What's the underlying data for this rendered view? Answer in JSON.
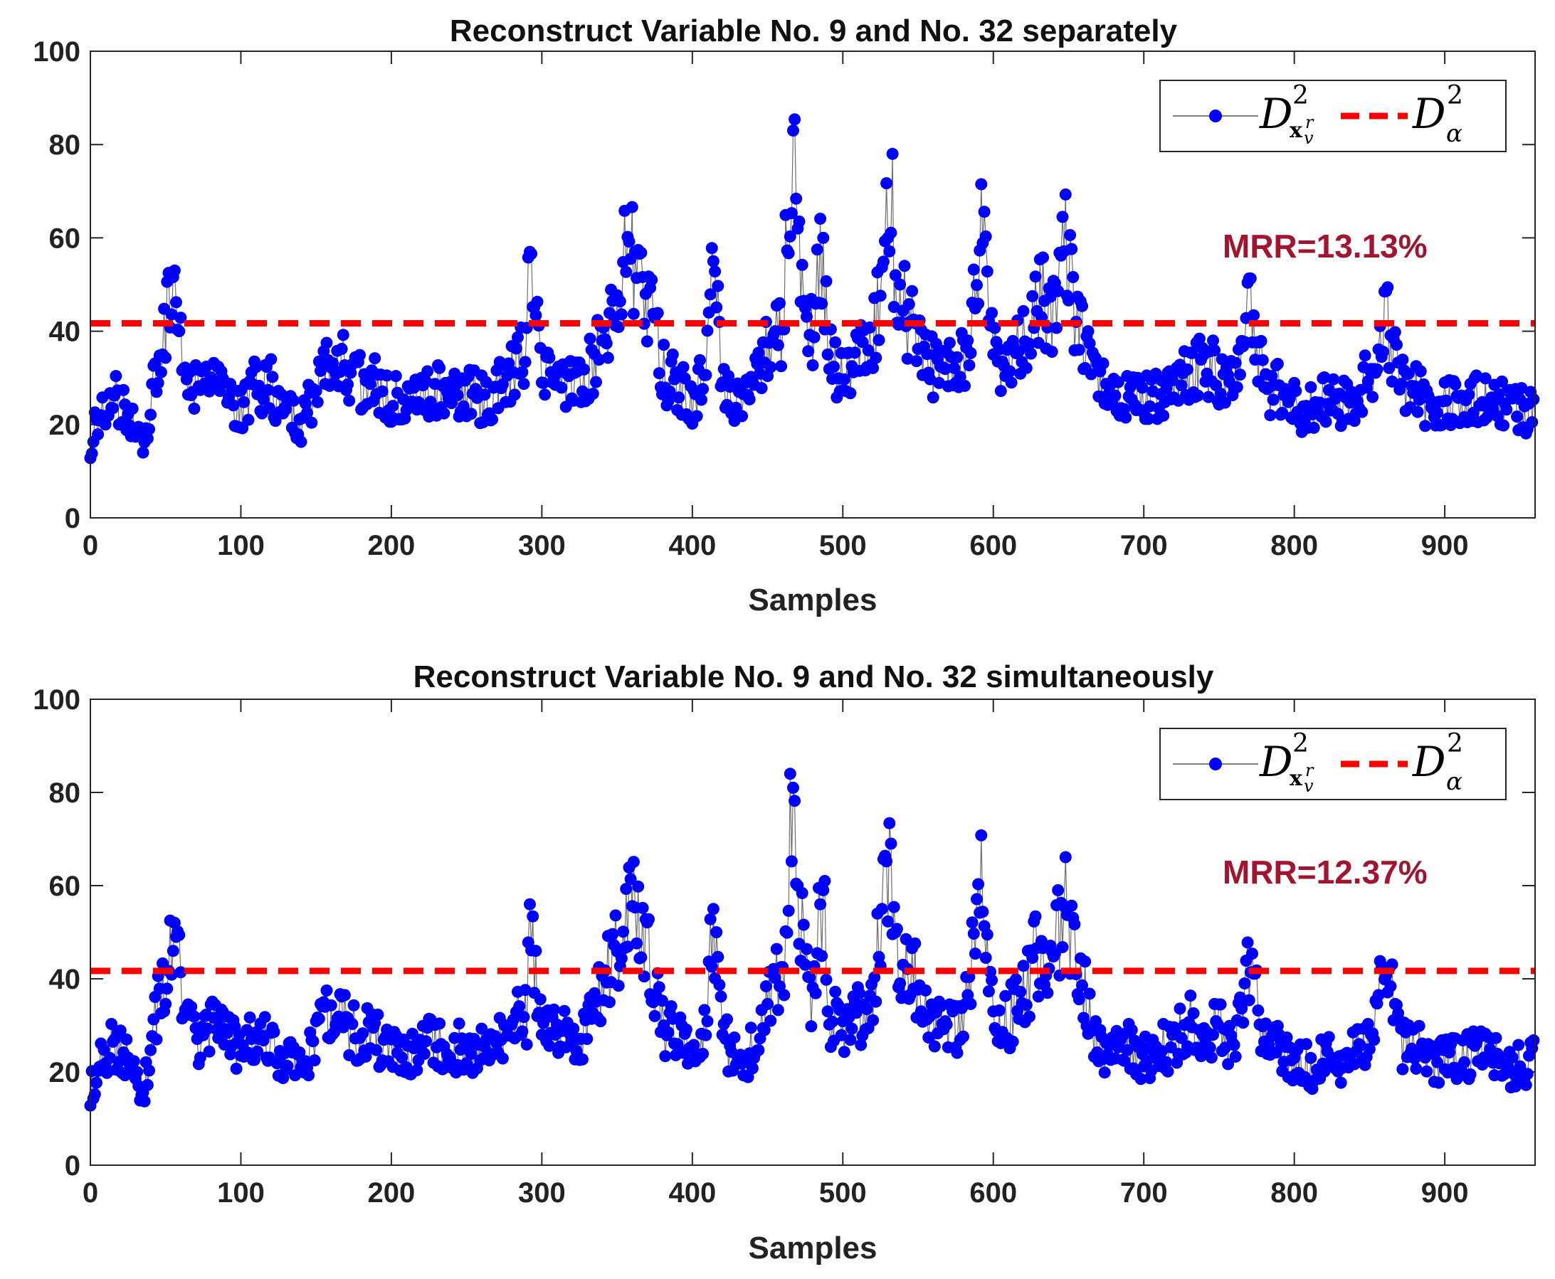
{
  "chart_data": [
    {
      "type": "line",
      "title": "Reconstruct Variable No. 9 and No. 32 separately",
      "xlabel": "Samples",
      "ylabel": "",
      "xlim": [
        0,
        960
      ],
      "ylim": [
        0,
        100
      ],
      "xticks": [
        0,
        100,
        200,
        300,
        400,
        500,
        600,
        700,
        800,
        900
      ],
      "yticks": [
        0,
        20,
        40,
        60,
        80,
        100
      ],
      "threshold": 41.7,
      "annotation": "MRR=13.13%",
      "legend": {
        "position": "top-right",
        "series_label": "D",
        "threshold_label": "D"
      },
      "series": [
        {
          "name": "D_xv^r 2",
          "color": "#0000ff",
          "anchors": [
            [
              0,
              17
            ],
            [
              5,
              20
            ],
            [
              15,
              26
            ],
            [
              25,
              22
            ],
            [
              35,
              14
            ],
            [
              40,
              26
            ],
            [
              45,
              34
            ],
            [
              55,
              52
            ],
            [
              62,
              32
            ],
            [
              70,
              27
            ],
            [
              80,
              30
            ],
            [
              90,
              27
            ],
            [
              100,
              24
            ],
            [
              110,
              29
            ],
            [
              120,
              28
            ],
            [
              130,
              22
            ],
            [
              140,
              20
            ],
            [
              150,
              27
            ],
            [
              160,
              35
            ],
            [
              170,
              32
            ],
            [
              180,
              29
            ],
            [
              190,
              28
            ],
            [
              200,
              26
            ],
            [
              210,
              25
            ],
            [
              220,
              26
            ],
            [
              230,
              28
            ],
            [
              240,
              26
            ],
            [
              250,
              27
            ],
            [
              260,
              25
            ],
            [
              270,
              27
            ],
            [
              280,
              31
            ],
            [
              290,
              36
            ],
            [
              292,
              57
            ],
            [
              300,
              29
            ],
            [
              310,
              31
            ],
            [
              320,
              29
            ],
            [
              330,
              30
            ],
            [
              340,
              38
            ],
            [
              350,
              50
            ],
            [
              358,
              57
            ],
            [
              365,
              50
            ],
            [
              372,
              44
            ],
            [
              380,
              32
            ],
            [
              390,
              28
            ],
            [
              400,
              25
            ],
            [
              410,
              33
            ],
            [
              414,
              55
            ],
            [
              420,
              29
            ],
            [
              430,
              24
            ],
            [
              440,
              26
            ],
            [
              450,
              38
            ],
            [
              460,
              42
            ],
            [
              467,
              83
            ],
            [
              470,
              62
            ],
            [
              475,
              45
            ],
            [
              480,
              38
            ],
            [
              487,
              60
            ],
            [
              490,
              35
            ],
            [
              500,
              30
            ],
            [
              510,
              33
            ],
            [
              520,
              38
            ],
            [
              532,
              70
            ],
            [
              535,
              52
            ],
            [
              540,
              45
            ],
            [
              550,
              40
            ],
            [
              560,
              32
            ],
            [
              570,
              31
            ],
            [
              580,
              33
            ],
            [
              593,
              61
            ],
            [
              600,
              35
            ],
            [
              610,
              33
            ],
            [
              620,
              38
            ],
            [
              630,
              48
            ],
            [
              640,
              44
            ],
            [
              648,
              61
            ],
            [
              655,
              42
            ],
            [
              662,
              37
            ],
            [
              670,
              28
            ],
            [
              680,
              26
            ],
            [
              690,
              26
            ],
            [
              700,
              25
            ],
            [
              710,
              26
            ],
            [
              720,
              28
            ],
            [
              730,
              32
            ],
            [
              740,
              32
            ],
            [
              750,
              31
            ],
            [
              760,
              28
            ],
            [
              771,
              47
            ],
            [
              780,
              28
            ],
            [
              790,
              27
            ],
            [
              800,
              24
            ],
            [
              810,
              23
            ],
            [
              820,
              25
            ],
            [
              830,
              24
            ],
            [
              840,
              26
            ],
            [
              850,
              30
            ],
            [
              862,
              43
            ],
            [
              870,
              28
            ],
            [
              880,
              28
            ],
            [
              890,
              24
            ],
            [
              900,
              24
            ],
            [
              910,
              25
            ],
            [
              920,
              26
            ],
            [
              930,
              25
            ],
            [
              940,
              25
            ],
            [
              950,
              23
            ],
            [
              958,
              22
            ]
          ]
        }
      ]
    },
    {
      "type": "line",
      "title": "Reconstruct Variable No. 9 and No. 32 simultaneously",
      "xlabel": "Samples",
      "ylabel": "",
      "xlim": [
        0,
        960
      ],
      "ylim": [
        0,
        100
      ],
      "xticks": [
        0,
        100,
        200,
        300,
        400,
        500,
        600,
        700,
        800,
        900
      ],
      "yticks": [
        0,
        20,
        40,
        60,
        80,
        100
      ],
      "threshold": 41.7,
      "annotation": "MRR=12.37%",
      "legend": {
        "position": "top-right",
        "series_label": "D",
        "threshold_label": "D"
      },
      "series": [
        {
          "name": "D_xv^r 2",
          "color": "#0000ff",
          "anchors": [
            [
              0,
              17
            ],
            [
              5,
              20
            ],
            [
              15,
              26
            ],
            [
              25,
              22
            ],
            [
              35,
              14
            ],
            [
              40,
              26
            ],
            [
              45,
              34
            ],
            [
              55,
              52
            ],
            [
              62,
              32
            ],
            [
              70,
              27
            ],
            [
              80,
              30
            ],
            [
              90,
              27
            ],
            [
              100,
              24
            ],
            [
              110,
              28
            ],
            [
              120,
              27
            ],
            [
              130,
              22
            ],
            [
              140,
              20
            ],
            [
              150,
              26
            ],
            [
              160,
              34
            ],
            [
              170,
              30
            ],
            [
              180,
              28
            ],
            [
              190,
              27
            ],
            [
              200,
              25
            ],
            [
              210,
              24
            ],
            [
              220,
              25
            ],
            [
              230,
              27
            ],
            [
              240,
              25
            ],
            [
              250,
              26
            ],
            [
              260,
              24
            ],
            [
              270,
              26
            ],
            [
              280,
              29
            ],
            [
              290,
              33
            ],
            [
              292,
              56
            ],
            [
              300,
              28
            ],
            [
              310,
              29
            ],
            [
              320,
              28
            ],
            [
              330,
              29
            ],
            [
              340,
              37
            ],
            [
              350,
              48
            ],
            [
              358,
              57
            ],
            [
              365,
              49
            ],
            [
              372,
              43
            ],
            [
              380,
              30
            ],
            [
              390,
              27
            ],
            [
              400,
              24
            ],
            [
              410,
              32
            ],
            [
              414,
              55
            ],
            [
              420,
              28
            ],
            [
              430,
              22
            ],
            [
              440,
              25
            ],
            [
              450,
              36
            ],
            [
              460,
              40
            ],
            [
              467,
              81
            ],
            [
              470,
              60
            ],
            [
              475,
              43
            ],
            [
              480,
              36
            ],
            [
              487,
              59
            ],
            [
              490,
              33
            ],
            [
              500,
              29
            ],
            [
              510,
              32
            ],
            [
              520,
              36
            ],
            [
              532,
              69
            ],
            [
              535,
              50
            ],
            [
              540,
              44
            ],
            [
              550,
              38
            ],
            [
              560,
              30
            ],
            [
              570,
              29
            ],
            [
              580,
              31
            ],
            [
              593,
              61
            ],
            [
              600,
              33
            ],
            [
              610,
              31
            ],
            [
              620,
              36
            ],
            [
              630,
              46
            ],
            [
              640,
              42
            ],
            [
              648,
              61
            ],
            [
              655,
              41
            ],
            [
              662,
              35
            ],
            [
              670,
              26
            ],
            [
              680,
              24
            ],
            [
              690,
              25
            ],
            [
              700,
              23
            ],
            [
              710,
              25
            ],
            [
              720,
              26
            ],
            [
              730,
              30
            ],
            [
              740,
              30
            ],
            [
              750,
              29
            ],
            [
              760,
              26
            ],
            [
              771,
              43
            ],
            [
              780,
              26
            ],
            [
              790,
              25
            ],
            [
              800,
              22
            ],
            [
              810,
              21
            ],
            [
              820,
              23
            ],
            [
              830,
              22
            ],
            [
              840,
              24
            ],
            [
              850,
              28
            ],
            [
              862,
              42
            ],
            [
              870,
              26
            ],
            [
              880,
              26
            ],
            [
              890,
              22
            ],
            [
              900,
              22
            ],
            [
              910,
              23
            ],
            [
              920,
              24
            ],
            [
              930,
              23
            ],
            [
              940,
              22
            ],
            [
              950,
              21
            ],
            [
              958,
              23
            ]
          ]
        }
      ]
    }
  ],
  "legend_text": {
    "series_main": "D",
    "series_sup": "2",
    "series_sub": "x",
    "series_subsup": "r",
    "series_subsub": "v",
    "threshold_main": "D",
    "threshold_sup": "2",
    "threshold_sub": "α"
  }
}
